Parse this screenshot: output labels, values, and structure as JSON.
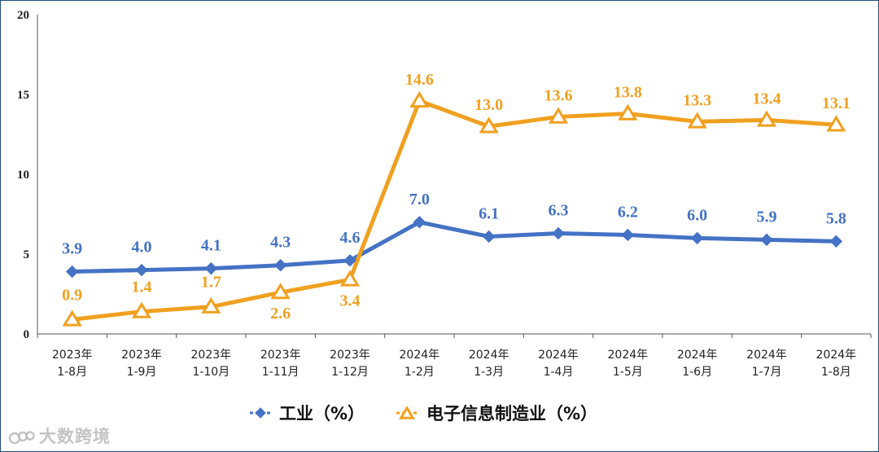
{
  "chart_data": {
    "type": "line",
    "categories": [
      [
        "2023年",
        "1-8月"
      ],
      [
        "2023年",
        "1-9月"
      ],
      [
        "2023年",
        "1-10月"
      ],
      [
        "2023年",
        "1-11月"
      ],
      [
        "2023年",
        "1-12月"
      ],
      [
        "2024年",
        "1-2月"
      ],
      [
        "2024年",
        "1-3月"
      ],
      [
        "2024年",
        "1-4月"
      ],
      [
        "2024年",
        "1-5月"
      ],
      [
        "2024年",
        "1-6月"
      ],
      [
        "2024年",
        "1-7月"
      ],
      [
        "2024年",
        "1-8月"
      ]
    ],
    "series": [
      {
        "name": "工业（%）",
        "color": "#4472c4",
        "marker": "diamond",
        "values": [
          3.9,
          4.0,
          4.1,
          4.3,
          4.6,
          7.0,
          6.1,
          6.3,
          6.2,
          6.0,
          5.9,
          5.8
        ],
        "labels": [
          "3.9",
          "4.0",
          "4.1",
          "4.3",
          "4.6",
          "7.0",
          "6.1",
          "6.3",
          "6.2",
          "6.0",
          "5.9",
          "5.8"
        ]
      },
      {
        "name": "电子信息制造业（%）",
        "color": "#f0a020",
        "marker": "triangle",
        "values": [
          0.9,
          1.4,
          1.7,
          2.6,
          3.4,
          14.6,
          13.0,
          13.6,
          13.8,
          13.3,
          13.4,
          13.1
        ],
        "labels": [
          "0.9",
          "1.4",
          "1.7",
          "2.6",
          "3.4",
          "14.6",
          "13.0",
          "13.6",
          "13.8",
          "13.3",
          "13.4",
          "13.1"
        ]
      }
    ],
    "yticks": [
      "0",
      "5",
      "10",
      "15",
      "20"
    ],
    "ylim": [
      0,
      20
    ],
    "grid": false,
    "legend_position": "bottom"
  },
  "watermark": "大数跨境"
}
